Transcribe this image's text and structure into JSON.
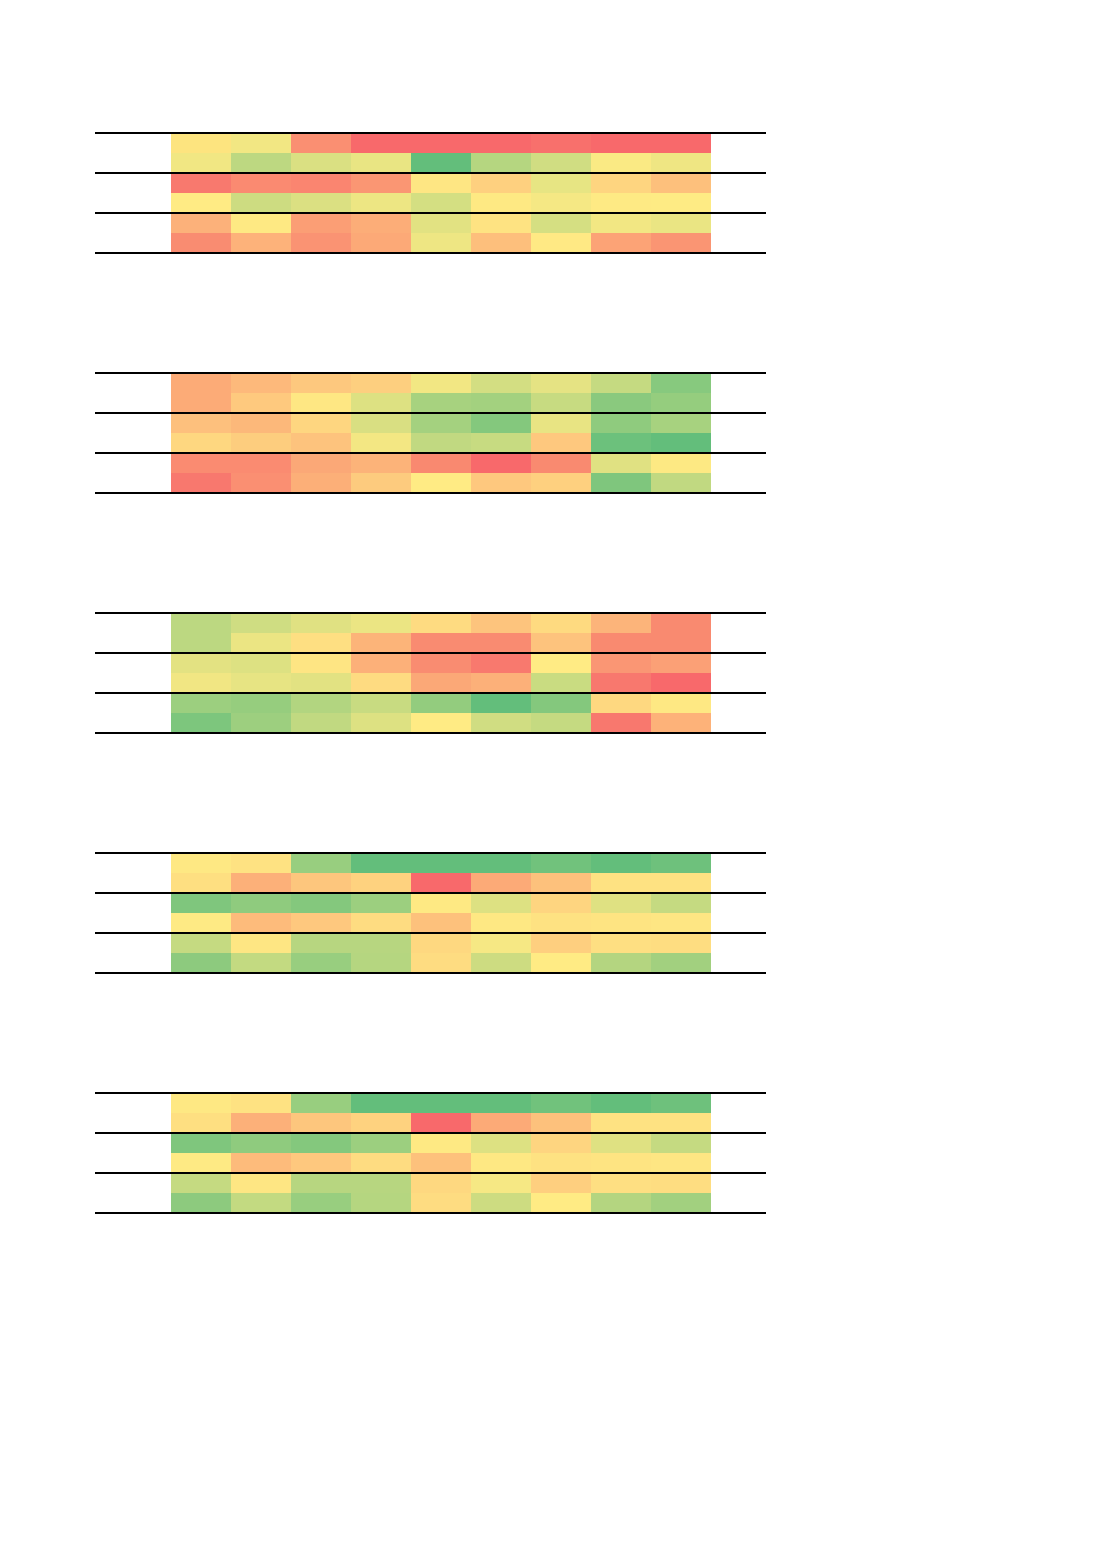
{
  "chart_data": [
    {
      "type": "heatmap",
      "title": "",
      "xlabel": "",
      "ylabel": "",
      "grid": false,
      "row_groups": 3,
      "rows_per_group": 2,
      "colors": [
        [
          "#fde47f",
          "#f2e783",
          "#fa8f72",
          "#f8696b",
          "#f8696b",
          "#f8696b",
          "#f8706c",
          "#f8696b",
          "#f8696b"
        ],
        [
          "#f1e783",
          "#bdd881",
          "#daE082",
          "#e9e583",
          "#63be7b",
          "#b5d680",
          "#d0dd82",
          "#faea84",
          "#efe683"
        ],
        [
          "#f8796e",
          "#fa8a71",
          "#fa8570",
          "#fa9673",
          "#fee683",
          "#fed07f",
          "#e7e583",
          "#fed580",
          "#fdc07c"
        ],
        [
          "#ffeb84",
          "#cddc81",
          "#dbe082",
          "#ede683",
          "#d4df82",
          "#fee983",
          "#f5e884",
          "#feea84",
          "#feeb84"
        ],
        [
          "#fcb17a",
          "#fee983",
          "#fb9e75",
          "#fcad78",
          "#e2e282",
          "#fee382",
          "#d5df82",
          "#f2e783",
          "#eae583"
        ],
        [
          "#f98c71",
          "#fdb27a",
          "#fa9373",
          "#fca977",
          "#eee683",
          "#fdbf7c",
          "#ffe984",
          "#fca376",
          "#fa9573"
        ]
      ]
    },
    {
      "type": "heatmap",
      "title": "",
      "xlabel": "",
      "ylabel": "",
      "grid": false,
      "row_groups": 3,
      "rows_per_group": 2,
      "colors": [
        [
          "#fcab77",
          "#fdb97b",
          "#fdc87e",
          "#fdcf7f",
          "#f2e783",
          "#d3de82",
          "#e5e383",
          "#c5da81",
          "#87c97e"
        ],
        [
          "#fcab77",
          "#fec97e",
          "#fee783",
          "#dde182",
          "#a7d27f",
          "#a3d17f",
          "#c7db81",
          "#8ac97e",
          "#95cd7e"
        ],
        [
          "#fdc07d",
          "#fcb87a",
          "#fed680",
          "#d9df82",
          "#a4d17f",
          "#84c87d",
          "#e8e483",
          "#8fcb7e",
          "#a7d27f"
        ],
        [
          "#fed780",
          "#fdcd7e",
          "#fdc37d",
          "#f3e783",
          "#c1d981",
          "#c7db81",
          "#fec87e",
          "#6cc17c",
          "#63be7b"
        ],
        [
          "#fa8b71",
          "#fa8b71",
          "#fba877",
          "#fcb379",
          "#f98970",
          "#f8696b",
          "#f98a70",
          "#e0e182",
          "#fde983"
        ],
        [
          "#f8786e",
          "#fa8f72",
          "#fcaf78",
          "#fdcb7e",
          "#ffeb84",
          "#fec87e",
          "#fed07f",
          "#7fc67d",
          "#c1d981"
        ]
      ]
    },
    {
      "type": "heatmap",
      "title": "",
      "xlabel": "",
      "ylabel": "",
      "grid": false,
      "row_groups": 3,
      "rows_per_group": 2,
      "colors": [
        [
          "#bcd881",
          "#cfdd82",
          "#e0e182",
          "#ebe583",
          "#fedb81",
          "#fdc47d",
          "#feda80",
          "#fcb47a",
          "#f98a70"
        ],
        [
          "#bcd881",
          "#ebe583",
          "#fedf82",
          "#fcb479",
          "#f98b71",
          "#f98b71",
          "#fdc37d",
          "#f98a70",
          "#f98a70"
        ],
        [
          "#e3e282",
          "#dde182",
          "#fee583",
          "#fcb079",
          "#f98c71",
          "#f8796e",
          "#ffeb84",
          "#fa9674",
          "#fba076"
        ],
        [
          "#f1e683",
          "#e7e483",
          "#e2e282",
          "#fedb81",
          "#fba877",
          "#fcb079",
          "#c9dc81",
          "#f8786e",
          "#f8696b"
        ],
        [
          "#9ccf7f",
          "#96cd7e",
          "#b2d580",
          "#c8db81",
          "#93cc7e",
          "#63be7b",
          "#84c87d",
          "#fed880",
          "#fee883"
        ],
        [
          "#7dc67d",
          "#9dcf7f",
          "#c1d981",
          "#dde182",
          "#ffeb84",
          "#d0dd82",
          "#c5da81",
          "#f8786e",
          "#fdb279"
        ]
      ]
    },
    {
      "type": "heatmap",
      "title": "",
      "xlabel": "",
      "ylabel": "",
      "grid": false,
      "row_groups": 3,
      "rows_per_group": 2,
      "colors": [
        [
          "#fee883",
          "#fee282",
          "#98ce7f",
          "#63be7b",
          "#63be7b",
          "#63be7b",
          "#71c27c",
          "#63be7b",
          "#6ec17c"
        ],
        [
          "#fedf81",
          "#fcb079",
          "#fdc67d",
          "#fed27f",
          "#f8696b",
          "#fcaa77",
          "#fdc17c",
          "#fee282",
          "#fee282"
        ],
        [
          "#7fc67d",
          "#8fcb7e",
          "#84c87d",
          "#9ccf7f",
          "#fee983",
          "#dde182",
          "#fed580",
          "#dfe182",
          "#c5da81"
        ],
        [
          "#feea84",
          "#fdbb7b",
          "#fec87e",
          "#fedc81",
          "#fdc17c",
          "#fee883",
          "#fee282",
          "#fee482",
          "#fee683"
        ],
        [
          "#c5da81",
          "#fee683",
          "#b7d680",
          "#b7d680",
          "#fed880",
          "#f6e884",
          "#fecf7f",
          "#fedf82",
          "#fedd81"
        ],
        [
          "#8dca7e",
          "#c3da81",
          "#98ce7f",
          "#b5d680",
          "#fedc81",
          "#cddc81",
          "#ffeb84",
          "#b4d580",
          "#a2d07f"
        ]
      ]
    },
    {
      "type": "heatmap",
      "title": "",
      "xlabel": "",
      "ylabel": "",
      "grid": false,
      "row_groups": 3,
      "rows_per_group": 2,
      "colors": [
        [
          "#fee883",
          "#fee282",
          "#98ce7f",
          "#63be7b",
          "#63be7b",
          "#63be7b",
          "#71c27c",
          "#63be7b",
          "#6ec17c"
        ],
        [
          "#fedf81",
          "#fcb079",
          "#fdc67d",
          "#fed27f",
          "#f8696b",
          "#fcaa77",
          "#fdc17c",
          "#fee282",
          "#fee282"
        ],
        [
          "#7fc67d",
          "#8fcb7e",
          "#84c87d",
          "#9ccf7f",
          "#fee983",
          "#dde182",
          "#fed580",
          "#dfe182",
          "#c5da81"
        ],
        [
          "#feea84",
          "#fdbb7b",
          "#fec87e",
          "#fedc81",
          "#fdc17c",
          "#fee883",
          "#fee282",
          "#fee482",
          "#fee683"
        ],
        [
          "#c5da81",
          "#fee683",
          "#b7d680",
          "#b7d680",
          "#fed880",
          "#f6e884",
          "#fecf7f",
          "#fedf82",
          "#fedd81"
        ],
        [
          "#8dca7e",
          "#c3da81",
          "#98ce7f",
          "#b5d680",
          "#fedc81",
          "#cddc81",
          "#ffeb84",
          "#b4d580",
          "#a2d07f"
        ]
      ]
    }
  ]
}
